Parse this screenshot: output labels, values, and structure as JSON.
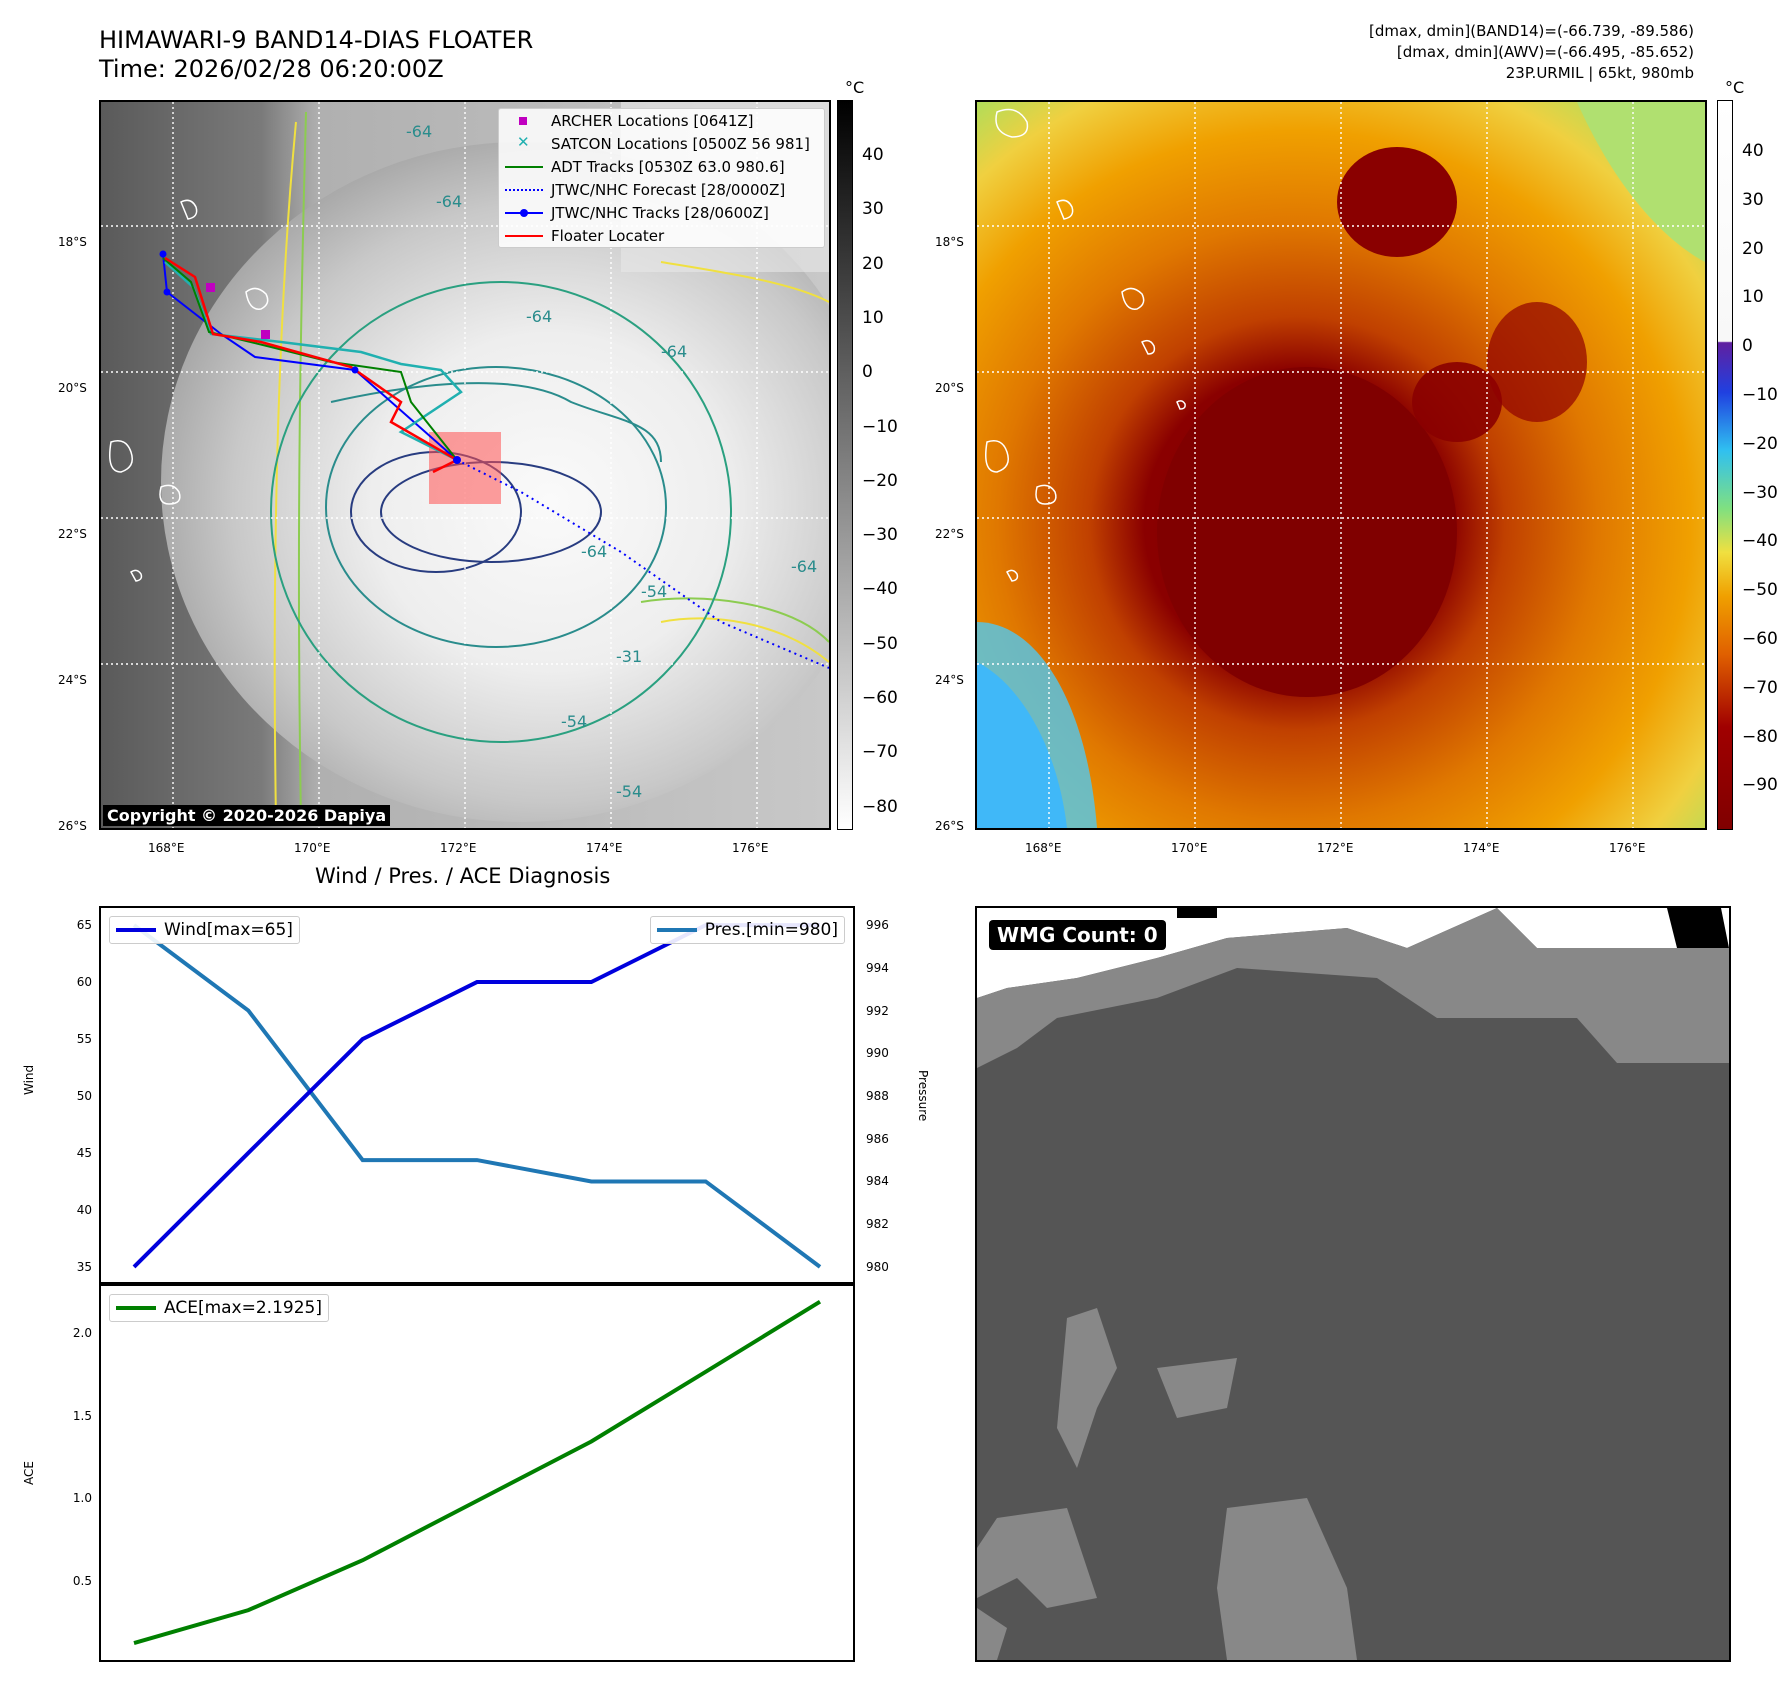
{
  "header": {
    "title_line1": "HIMAWARI-9 BAND14-DIAS FLOATER",
    "title_line2": "Time: 2026/02/28 06:20:00Z",
    "stats_line1": "[dmax, dmin](BAND14)=(-66.739, -89.586)",
    "stats_line2": "[dmax, dmin](AWV)=(-66.495, -85.652)",
    "stats_line3": "23P.URMIL | 65kt, 980mb"
  },
  "map": {
    "lat_labels": [
      "18°S",
      "20°S",
      "22°S",
      "24°S",
      "26°S"
    ],
    "lon_labels": [
      "168°E",
      "170°E",
      "172°E",
      "174°E",
      "176°E"
    ],
    "copyright": "Copyright © 2020-2026 Dapiya",
    "contour_labels": [
      "-64",
      "-64",
      "-64",
      "-64",
      "-64",
      "-54",
      "-54",
      "-54",
      "-31",
      "-64"
    ],
    "legend": [
      {
        "label": "ARCHER Locations [0641Z]",
        "color": "#c000c0",
        "symbol": "square"
      },
      {
        "label": "SATCON Locations [0500Z 56 981]",
        "color": "#20b0b0",
        "symbol": "x"
      },
      {
        "label": "ADT Tracks [0530Z 63.0 980.6]",
        "color": "#008000",
        "symbol": "line"
      },
      {
        "label": "JTWC/NHC Forecast [28/0000Z]",
        "color": "#0000ff",
        "symbol": "dotted"
      },
      {
        "label": "JTWC/NHC Tracks [28/0600Z]",
        "color": "#0000ff",
        "symbol": "line-dot"
      },
      {
        "label": "Floater Locater",
        "color": "#ff0000",
        "symbol": "line"
      }
    ]
  },
  "colorbars": {
    "unit": "°C",
    "gray_ticks": [
      "40",
      "30",
      "20",
      "10",
      "0",
      "−10",
      "−20",
      "−30",
      "−40",
      "−50",
      "−60",
      "−70",
      "−80"
    ],
    "color_ticks": [
      "40",
      "30",
      "20",
      "10",
      "0",
      "−10",
      "−20",
      "−30",
      "−40",
      "−50",
      "−60",
      "−70",
      "−80",
      "−90"
    ]
  },
  "diagnosis": {
    "title": "Wind / Pres. / ACE Diagnosis",
    "wind_axis_label": "Wind",
    "pressure_axis_label": "Pressure",
    "ace_axis_label": "ACE",
    "wind_legend": "Wind[max=65]",
    "pres_legend": "Pres.[min=980]",
    "ace_legend": "ACE[max=2.1925]",
    "wind_ticks": [
      "65",
      "60",
      "55",
      "50",
      "45",
      "40",
      "35"
    ],
    "pressure_ticks": [
      "996",
      "994",
      "992",
      "990",
      "988",
      "986",
      "984",
      "982",
      "980"
    ],
    "ace_ticks": [
      "2.0",
      "1.5",
      "1.0",
      "0.5"
    ]
  },
  "wmg": {
    "label": "WMG Count: 0"
  },
  "chart_data": [
    {
      "type": "line",
      "name": "wind",
      "x": [
        0,
        1,
        2,
        3,
        4,
        5,
        6
      ],
      "series": [
        {
          "name": "Wind[max=65]",
          "values": [
            35,
            45,
            55,
            60,
            60,
            65,
            65
          ],
          "color": "#0000dd"
        }
      ],
      "ylabel": "Wind",
      "ylim": [
        33.5,
        66.5
      ]
    },
    {
      "type": "line",
      "name": "pressure",
      "x": [
        0,
        1,
        2,
        3,
        4,
        5,
        6
      ],
      "series": [
        {
          "name": "Pres.[min=980]",
          "values": [
            996,
            992,
            985,
            985,
            984,
            984,
            980
          ],
          "color": "#1f77b4"
        }
      ],
      "ylabel": "Pressure",
      "ylim": [
        979.2,
        996.8
      ]
    },
    {
      "type": "line",
      "name": "ace",
      "x": [
        0,
        1,
        2,
        3,
        4,
        5,
        6
      ],
      "series": [
        {
          "name": "ACE[max=2.1925]",
          "values": [
            0.1225,
            0.3225,
            0.625,
            0.985,
            1.345,
            1.7675,
            2.1925
          ],
          "color": "#008000"
        }
      ],
      "ylabel": "ACE",
      "ylim": [
        0.02,
        2.3
      ]
    }
  ]
}
